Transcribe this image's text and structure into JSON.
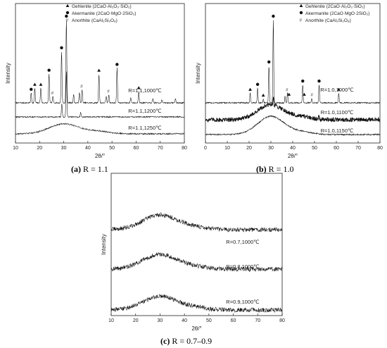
{
  "chart_data": [
    {
      "type": "line",
      "caption_letter": "(a)",
      "caption_rest": " R = 1.1",
      "xlabel": "2θ/°",
      "ylabel": "Intensity",
      "xlim": [
        10,
        80
      ],
      "x_ticks": [
        "10",
        "20",
        "30",
        "40",
        "50",
        "60",
        "70",
        "80"
      ],
      "legend": [
        {
          "marker": "triangle",
          "label": "Gehlenite (2CaO·Al₂O₃·SiO₂)"
        },
        {
          "marker": "circle",
          "label": "Akermanite (2CaO·MgO·2SiO₂)"
        },
        {
          "marker": "hash",
          "label": "Anorthite (CaAl₂Si₂O₈)"
        }
      ],
      "series": [
        {
          "name": "R=1.1,1000℃",
          "profile": "crystalline",
          "peaks": [
            [
              16.5,
              0.12
            ],
            [
              18.0,
              0.18
            ],
            [
              20.5,
              0.18
            ],
            [
              23.9,
              0.35
            ],
            [
              25.5,
              0.08
            ],
            [
              29.1,
              0.62
            ],
            [
              31.1,
              1.0
            ],
            [
              34.1,
              0.1
            ],
            [
              36.5,
              0.12
            ],
            [
              37.6,
              0.16
            ],
            [
              44.6,
              0.35
            ],
            [
              47.6,
              0.08
            ],
            [
              48.7,
              0.1
            ],
            [
              52.1,
              0.42
            ],
            [
              57.8,
              0.06
            ],
            [
              61.1,
              0.14
            ],
            [
              67.0,
              0.05
            ],
            [
              70.7,
              0.04
            ],
            [
              76.3,
              0.05
            ]
          ],
          "markers": [
            [
              16.5,
              "circle"
            ],
            [
              18.0,
              "triangle"
            ],
            [
              20.5,
              "triangle"
            ],
            [
              23.9,
              "circle"
            ],
            [
              25.5,
              "hash"
            ],
            [
              29.1,
              "circle"
            ],
            [
              31.1,
              "circle"
            ],
            [
              37.6,
              "hash"
            ],
            [
              44.6,
              "triangle"
            ],
            [
              48.7,
              "hash"
            ],
            [
              52.1,
              "circle"
            ],
            [
              61.1,
              "triangle"
            ]
          ]
        },
        {
          "name": "R=1.1,1200℃",
          "profile": "minor",
          "peaks": [
            [
              29.2,
              0.16
            ],
            [
              31.1,
              0.55
            ],
            [
              37.0,
              0.05
            ]
          ]
        },
        {
          "name": "R=1.1,1250℃",
          "profile": "amorphous",
          "hump_center": 30,
          "hump_height": 0.12
        }
      ]
    },
    {
      "type": "line",
      "caption_letter": "(b)",
      "caption_rest": " R = 1.0",
      "xlabel": "2θ/°",
      "ylabel": "Intensity",
      "xlim": [
        0,
        80
      ],
      "x_ticks": [
        "0",
        "10",
        "20",
        "30",
        "40",
        "50",
        "60",
        "70",
        "80"
      ],
      "legend": [
        {
          "marker": "triangle",
          "label": "Gehlenite (2CaO·Al₂O₃·SiO₂)"
        },
        {
          "marker": "circle",
          "label": "Akermanite (2CaO·MgO·2SiO₂)"
        },
        {
          "marker": "hash",
          "label": "Anorthite (CaAl₂Si₂O₈)"
        }
      ],
      "series": [
        {
          "name": "R=1.0,1000℃",
          "profile": "crystalline",
          "peaks": [
            [
              20.5,
              0.12
            ],
            [
              23.9,
              0.18
            ],
            [
              26.5,
              0.05
            ],
            [
              29.1,
              0.45
            ],
            [
              31.1,
              1.0
            ],
            [
              36.5,
              0.08
            ],
            [
              37.6,
              0.12
            ],
            [
              44.6,
              0.22
            ],
            [
              48.7,
              0.05
            ],
            [
              52.1,
              0.22
            ],
            [
              61.1,
              0.12
            ]
          ],
          "markers": [
            [
              20.5,
              "triangle"
            ],
            [
              23.9,
              "circle"
            ],
            [
              26.5,
              "triangle"
            ],
            [
              29.1,
              "circle"
            ],
            [
              31.1,
              "circle"
            ],
            [
              37.6,
              "hash"
            ],
            [
              38.3,
              "triangle"
            ],
            [
              44.6,
              "circle"
            ],
            [
              45.3,
              "triangle"
            ],
            [
              49.0,
              "hash"
            ],
            [
              52.1,
              "circle"
            ],
            [
              61.1,
              "triangle"
            ]
          ]
        },
        {
          "name": "R=1.0,1100℃",
          "profile": "amorphous-peaks",
          "hump_center": 30,
          "hump_height": 0.18,
          "peaks": [
            [
              31.1,
              0.1
            ],
            [
              52.0,
              0.06
            ]
          ]
        },
        {
          "name": "R=1.0,1150℃",
          "profile": "amorphous",
          "hump_center": 30,
          "hump_height": 0.22
        }
      ]
    },
    {
      "type": "line",
      "caption_letter": "(c)",
      "caption_rest": " R = 0.7–0.9",
      "xlabel": "2θ/°",
      "ylabel": "Intensity",
      "xlim": [
        10,
        80
      ],
      "x_ticks": [
        "10",
        "20",
        "30",
        "40",
        "50",
        "60",
        "70",
        "80"
      ],
      "legend": [],
      "series": [
        {
          "name": "R=0.7,1000℃",
          "profile": "amorphous",
          "hump_center": 30,
          "hump_height": 0.35
        },
        {
          "name": "R=0.8,1000℃",
          "profile": "amorphous",
          "hump_center": 30,
          "hump_height": 0.35
        },
        {
          "name": "R=0.9,1000℃",
          "profile": "amorphous",
          "hump_center": 30,
          "hump_height": 0.32
        }
      ]
    }
  ]
}
